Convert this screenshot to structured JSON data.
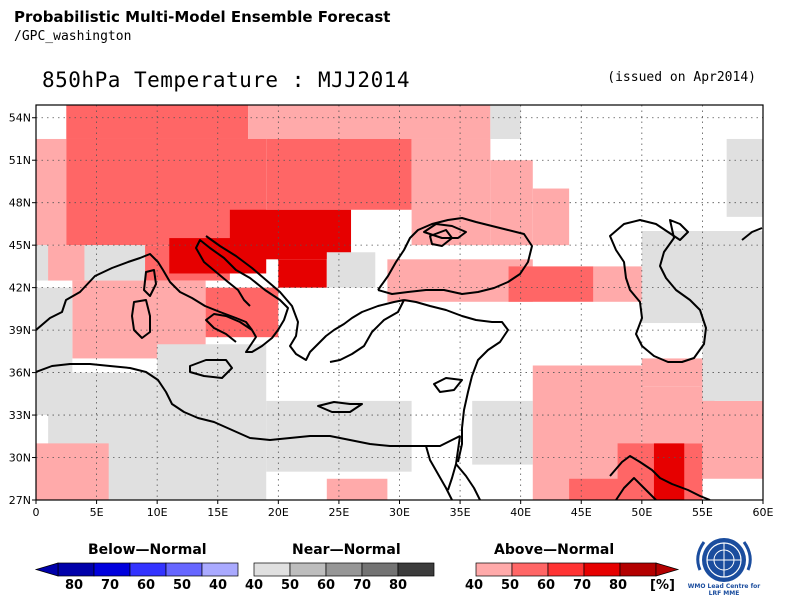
{
  "header": {
    "product_title": "Probabilistic Multi-Model Ensemble Forecast",
    "producer": "/GPC_washington",
    "map_title": "850hPa Temperature : MJJ2014",
    "issued": "(issued on Apr2014)"
  },
  "map": {
    "lon_range": [
      0,
      60
    ],
    "lat_range": [
      27,
      55
    ],
    "lon_ticks": [
      "0",
      "5E",
      "10E",
      "15E",
      "20E",
      "25E",
      "30E",
      "35E",
      "40E",
      "45E",
      "50E",
      "55E",
      "60E"
    ],
    "lat_ticks": [
      "27N",
      "30N",
      "33N",
      "36N",
      "39N",
      "42N",
      "45N",
      "48N",
      "51N",
      "54N"
    ],
    "grid": "dotted",
    "coastline_region": "Mediterranean, Black Sea, Caspian Sea, Red Sea, Persian Gulf",
    "probability_cells": [
      {
        "lon": [
          2.5,
          17.5
        ],
        "lat": [
          52.5,
          55
        ],
        "cat": "above",
        "p": 50
      },
      {
        "lon": [
          17.5,
          37.5
        ],
        "lat": [
          52.5,
          55
        ],
        "cat": "above",
        "p": 40
      },
      {
        "lon": [
          37.5,
          40
        ],
        "lat": [
          52.5,
          55
        ],
        "cat": "near",
        "p": 40
      },
      {
        "lon": [
          0,
          2.5
        ],
        "lat": [
          45,
          52.5
        ],
        "cat": "above",
        "p": 40
      },
      {
        "lon": [
          0,
          2.5
        ],
        "lat": [
          42.5,
          45
        ],
        "cat": "near",
        "p": 40
      },
      {
        "lon": [
          2.5,
          19
        ],
        "lat": [
          45,
          52.5
        ],
        "cat": "above",
        "p": 50
      },
      {
        "lon": [
          19,
          31
        ],
        "lat": [
          47.5,
          52.5
        ],
        "cat": "above",
        "p": 50
      },
      {
        "lon": [
          31,
          37.5
        ],
        "lat": [
          45,
          52.5
        ],
        "cat": "above",
        "p": 40
      },
      {
        "lon": [
          37.5,
          41
        ],
        "lat": [
          45,
          51
        ],
        "cat": "above",
        "p": 40
      },
      {
        "lon": [
          41,
          44
        ],
        "lat": [
          45,
          49
        ],
        "cat": "above",
        "p": 40
      },
      {
        "lon": [
          1,
          4
        ],
        "lat": [
          42.5,
          45
        ],
        "cat": "above",
        "p": 40
      },
      {
        "lon": [
          4,
          9
        ],
        "lat": [
          42.5,
          45
        ],
        "cat": "near",
        "p": 40
      },
      {
        "lon": [
          9,
          16
        ],
        "lat": [
          42.5,
          45
        ],
        "cat": "above",
        "p": 50
      },
      {
        "lon": [
          11,
          19
        ],
        "lat": [
          43,
          45.5
        ],
        "cat": "above",
        "p": 70
      },
      {
        "lon": [
          16,
          26
        ],
        "lat": [
          44,
          47.5
        ],
        "cat": "above",
        "p": 70
      },
      {
        "lon": [
          20,
          24
        ],
        "lat": [
          42,
          44
        ],
        "cat": "above",
        "p": 70
      },
      {
        "lon": [
          24,
          28
        ],
        "lat": [
          42,
          44.5
        ],
        "cat": "near",
        "p": 40
      },
      {
        "lon": [
          29,
          41
        ],
        "lat": [
          41,
          44
        ],
        "cat": "above",
        "p": 40
      },
      {
        "lon": [
          39,
          46
        ],
        "lat": [
          41,
          43.5
        ],
        "cat": "above",
        "p": 50
      },
      {
        "lon": [
          46,
          50
        ],
        "lat": [
          41,
          43.5
        ],
        "cat": "above",
        "p": 40
      },
      {
        "lon": [
          50,
          60
        ],
        "lat": [
          39.5,
          46
        ],
        "cat": "near",
        "p": 40
      },
      {
        "lon": [
          3,
          14
        ],
        "lat": [
          37,
          42.5
        ],
        "cat": "above",
        "p": 40
      },
      {
        "lon": [
          14,
          20
        ],
        "lat": [
          38.5,
          42
        ],
        "cat": "above",
        "p": 50
      },
      {
        "lon": [
          0,
          3
        ],
        "lat": [
          36,
          42
        ],
        "cat": "near",
        "p": 40
      },
      {
        "lon": [
          0,
          10
        ],
        "lat": [
          33,
          36
        ],
        "cat": "near",
        "p": 40
      },
      {
        "lon": [
          10,
          19
        ],
        "lat": [
          33,
          38
        ],
        "cat": "near",
        "p": 40
      },
      {
        "lon": [
          1,
          19
        ],
        "lat": [
          27,
          33
        ],
        "cat": "near",
        "p": 40
      },
      {
        "lon": [
          0,
          6
        ],
        "lat": [
          27,
          31
        ],
        "cat": "above",
        "p": 40
      },
      {
        "lon": [
          19,
          31
        ],
        "lat": [
          29,
          34
        ],
        "cat": "near",
        "p": 40
      },
      {
        "lon": [
          24,
          29
        ],
        "lat": [
          27,
          28.5
        ],
        "cat": "above",
        "p": 40
      },
      {
        "lon": [
          36,
          41
        ],
        "lat": [
          29.5,
          34
        ],
        "cat": "near",
        "p": 40
      },
      {
        "lon": [
          41,
          50
        ],
        "lat": [
          27,
          36.5
        ],
        "cat": "above",
        "p": 40
      },
      {
        "lon": [
          44,
          49.5
        ],
        "lat": [
          27,
          28.5
        ],
        "cat": "above",
        "p": 50
      },
      {
        "lon": [
          50,
          56
        ],
        "lat": [
          31,
          35
        ],
        "cat": "above",
        "p": 40
      },
      {
        "lon": [
          48,
          55
        ],
        "lat": [
          27,
          31
        ],
        "cat": "above",
        "p": 50
      },
      {
        "lon": [
          51,
          53.5
        ],
        "lat": [
          27,
          31
        ],
        "cat": "above",
        "p": 70
      },
      {
        "lon": [
          50,
          60
        ],
        "lat": [
          35,
          37
        ],
        "cat": "above",
        "p": 40
      },
      {
        "lon": [
          55,
          60
        ],
        "lat": [
          28.5,
          34
        ],
        "cat": "above",
        "p": 40
      },
      {
        "lon": [
          55,
          60
        ],
        "lat": [
          34,
          40
        ],
        "cat": "near",
        "p": 40
      },
      {
        "lon": [
          57,
          60
        ],
        "lat": [
          47,
          52.5
        ],
        "cat": "near",
        "p": 40
      }
    ]
  },
  "legend": {
    "below": {
      "label": "Below—Normal",
      "values": [
        "80",
        "70",
        "60",
        "50",
        "40"
      ],
      "colors": [
        "#0000aa",
        "#0000dd",
        "#3333ff",
        "#6666ff",
        "#aaaaff"
      ]
    },
    "near": {
      "label": "Near—Normal",
      "values": [
        "40",
        "50",
        "60",
        "70",
        "80"
      ],
      "colors": [
        "#e0e0e0",
        "#bdbdbd",
        "#969696",
        "#737373",
        "#3c3c3c"
      ]
    },
    "above": {
      "label": "Above—Normal",
      "values": [
        "40",
        "50",
        "60",
        "70",
        "80"
      ],
      "colors": [
        "#ffaaaa",
        "#ff6666",
        "#ff3333",
        "#e60000",
        "#b30000"
      ]
    },
    "unit": "[%]"
  },
  "logo": {
    "icon": "wmo-emblem-icon",
    "caption": "WMO Lead Centre for LRF MME"
  }
}
